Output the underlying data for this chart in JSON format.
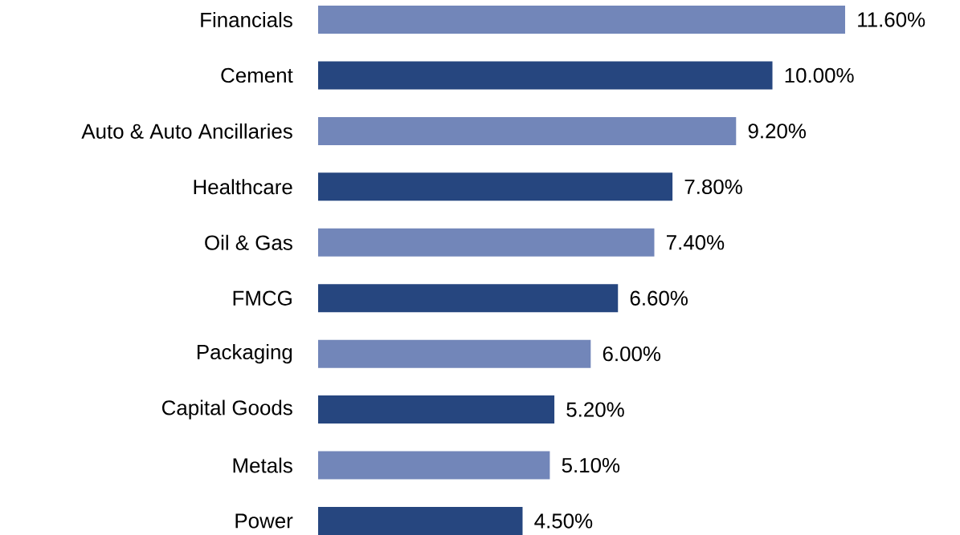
{
  "chart_data": {
    "type": "bar",
    "orientation": "horizontal",
    "categories": [
      "Financials",
      "Cement",
      "Auto & Auto Ancillaries",
      "Healthcare",
      "Oil & Gas",
      "FMCG",
      "Packaging",
      "Capital Goods",
      "Metals",
      "Power"
    ],
    "values": [
      11.6,
      10.0,
      9.2,
      7.8,
      7.4,
      6.6,
      6.0,
      5.2,
      5.1,
      4.5
    ],
    "value_labels": [
      "11.60%",
      "10.00%",
      "9.20%",
      "7.80%",
      "7.40%",
      "6.60%",
      "6.00%",
      "5.20%",
      "5.10%",
      "4.50%"
    ],
    "colors": [
      "#7286b9",
      "#26467f",
      "#7286b9",
      "#26467f",
      "#7286b9",
      "#26467f",
      "#7286b9",
      "#26467f",
      "#7286b9",
      "#26467f"
    ]
  }
}
